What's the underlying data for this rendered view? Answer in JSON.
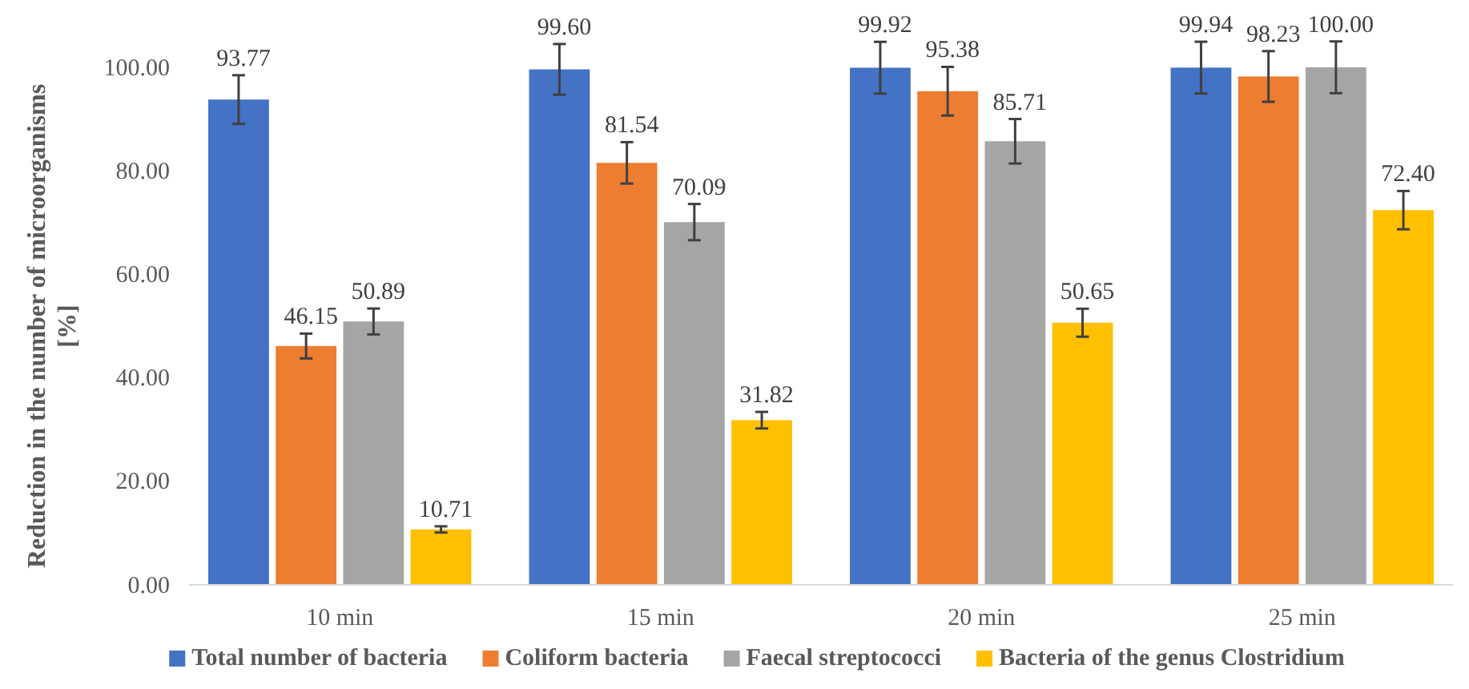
{
  "chart_data": {
    "type": "bar",
    "ylabel": "Reduction in the number of microorganisms [%]",
    "categories": [
      "10 min",
      "15 min",
      "20 min",
      "25 min"
    ],
    "series": [
      {
        "name": "Total number of bacteria",
        "color": "#4472c4",
        "values": [
          93.77,
          99.6,
          99.92,
          99.94
        ],
        "value_labels": [
          "93.77",
          "99.60",
          "99.92",
          "99.94"
        ],
        "errors": [
          4.7,
          4.9,
          5,
          5
        ]
      },
      {
        "name": "Coliform bacteria",
        "color": "#ed7d31",
        "values": [
          46.15,
          81.54,
          95.38,
          98.23
        ],
        "value_labels": [
          "46.15",
          "81.54",
          "95.38",
          "98.23"
        ],
        "errors": [
          2.4,
          4,
          4.7,
          4.9
        ]
      },
      {
        "name": "Faecal streptococci",
        "color": "#a5a5a5",
        "values": [
          50.89,
          70.09,
          85.71,
          100.0
        ],
        "value_labels": [
          "50.89",
          "70.09",
          "85.71",
          "100.00"
        ],
        "errors": [
          2.5,
          3.5,
          4.3,
          5
        ]
      },
      {
        "name": "Bacteria of the genus Clostridium",
        "color": "#ffc000",
        "values": [
          10.71,
          31.82,
          50.65,
          72.4
        ],
        "value_labels": [
          "10.71",
          "31.82",
          "50.65",
          "72.40"
        ],
        "errors": [
          0.6,
          1.6,
          2.7,
          3.7
        ]
      }
    ],
    "ylim": [
      0,
      100
    ],
    "yticks": [
      {
        "value": 0,
        "label": "0.00"
      },
      {
        "value": 20,
        "label": "20.00"
      },
      {
        "value": 40,
        "label": "40.00"
      },
      {
        "value": 60,
        "label": "60.00"
      },
      {
        "value": 80,
        "label": "80.00"
      },
      {
        "value": 100,
        "label": "100.00"
      }
    ],
    "grid": false,
    "legend": "bottom"
  }
}
